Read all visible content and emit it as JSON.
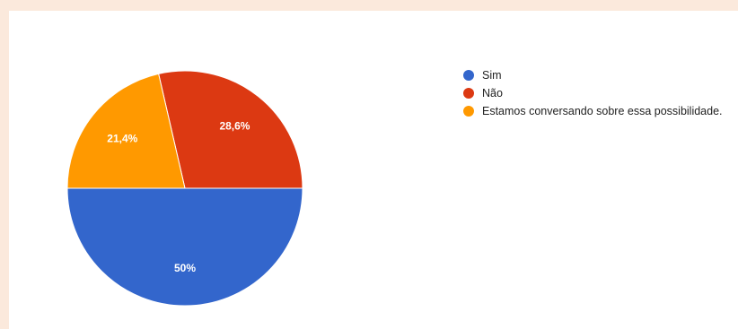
{
  "chart_data": {
    "type": "pie",
    "slices": [
      {
        "label": "Sim",
        "value": 50,
        "display": "50%",
        "color": "#3366cc"
      },
      {
        "label": "Não",
        "value": 28.6,
        "display": "28,6%",
        "color": "#dc3912"
      },
      {
        "label": "Estamos conversando sobre essa possibilidade.",
        "value": 21.4,
        "display": "21,4%",
        "color": "#ff9900"
      }
    ],
    "legend_position": "right"
  }
}
